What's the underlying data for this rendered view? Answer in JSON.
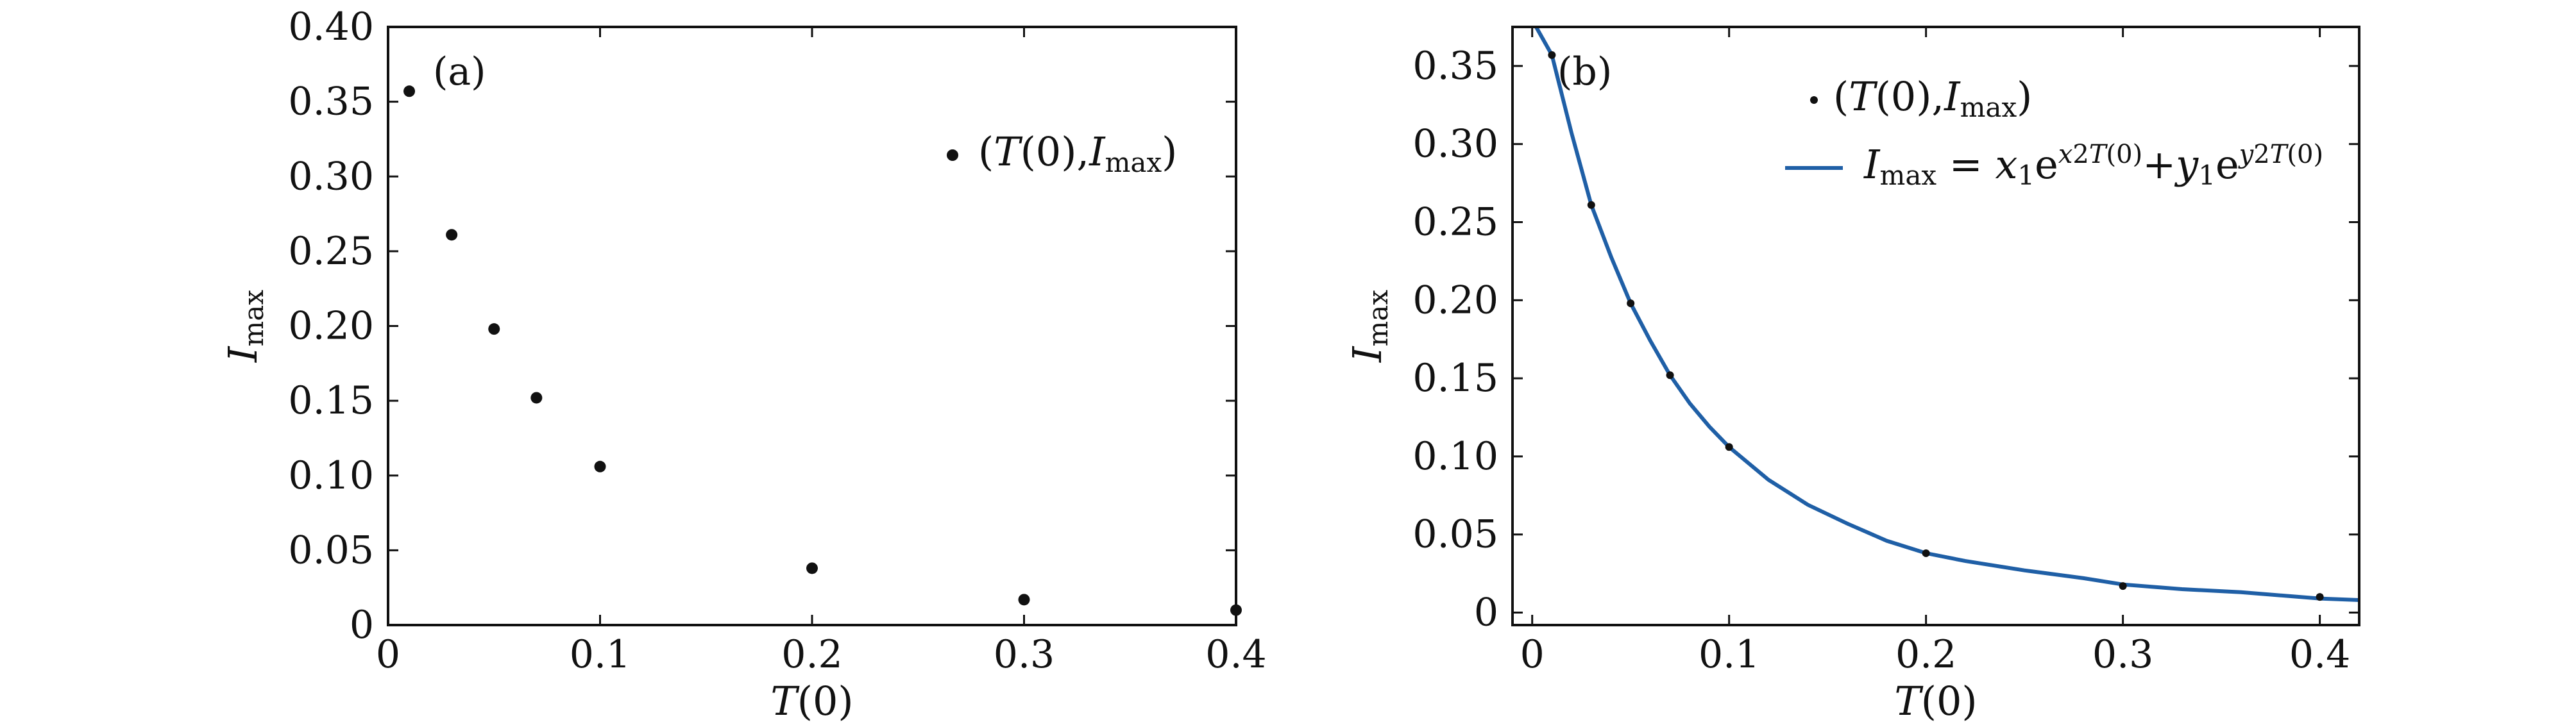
{
  "chart_data": [
    {
      "type": "scatter",
      "panel_label": "(a)",
      "xlabel": "T(0)",
      "ylabel": "I_max",
      "xlim": [
        0,
        0.4
      ],
      "ylim": [
        0,
        0.4
      ],
      "xticks": [
        0,
        0.1,
        0.2,
        0.3,
        0.4
      ],
      "xtick_labels": [
        "0",
        "0.1",
        "0.2",
        "0.3",
        "0.4"
      ],
      "yticks": [
        0,
        0.05,
        0.1,
        0.15,
        0.2,
        0.25,
        0.3,
        0.35,
        0.4
      ],
      "ytick_labels": [
        "0",
        "0.05",
        "0.10",
        "0.15",
        "0.20",
        "0.25",
        "0.30",
        "0.35",
        "0.40"
      ],
      "legend_position": "upper-right",
      "grid": false,
      "series": [
        {
          "name": "(T(0),I_max)",
          "kind": "points",
          "color": "#111111",
          "x": [
            0.01,
            0.03,
            0.05,
            0.07,
            0.1,
            0.2,
            0.3,
            0.4
          ],
          "y": [
            0.357,
            0.261,
            0.198,
            0.152,
            0.106,
            0.038,
            0.017,
            0.01
          ]
        }
      ]
    },
    {
      "type": "line",
      "panel_label": "(b)",
      "xlabel": "T(0)",
      "ylabel": "I_max",
      "xlim": [
        -0.01,
        0.42
      ],
      "ylim": [
        -0.008,
        0.375
      ],
      "xticks": [
        0,
        0.1,
        0.2,
        0.3,
        0.4
      ],
      "xtick_labels": [
        "0",
        "0.1",
        "0.2",
        "0.3",
        "0.4"
      ],
      "yticks": [
        0,
        0.05,
        0.1,
        0.15,
        0.2,
        0.25,
        0.3,
        0.35
      ],
      "ytick_labels": [
        "0",
        "0.05",
        "0.10",
        "0.15",
        "0.20",
        "0.25",
        "0.30",
        "0.35"
      ],
      "legend_position": "upper-right",
      "grid": false,
      "series": [
        {
          "name": "(T(0),I_max)",
          "kind": "points",
          "color": "#111111",
          "x": [
            0.01,
            0.03,
            0.05,
            0.07,
            0.1,
            0.2,
            0.3,
            0.4
          ],
          "y": [
            0.357,
            0.261,
            0.198,
            0.152,
            0.106,
            0.038,
            0.017,
            0.01
          ]
        },
        {
          "name": "I_max = x1 e^(x2 T(0)) + y1 e^(y2 T(0))",
          "kind": "curve",
          "color": "#1f5fa6",
          "x": [
            0.002,
            0.01,
            0.02,
            0.03,
            0.04,
            0.05,
            0.06,
            0.07,
            0.08,
            0.09,
            0.1,
            0.12,
            0.14,
            0.16,
            0.18,
            0.2,
            0.22,
            0.25,
            0.28,
            0.3,
            0.33,
            0.36,
            0.4,
            0.42
          ],
          "y": [
            0.375,
            0.357,
            0.307,
            0.261,
            0.228,
            0.198,
            0.174,
            0.152,
            0.134,
            0.119,
            0.106,
            0.085,
            0.069,
            0.057,
            0.046,
            0.038,
            0.033,
            0.027,
            0.022,
            0.018,
            0.015,
            0.013,
            0.009,
            0.008
          ]
        }
      ]
    }
  ]
}
